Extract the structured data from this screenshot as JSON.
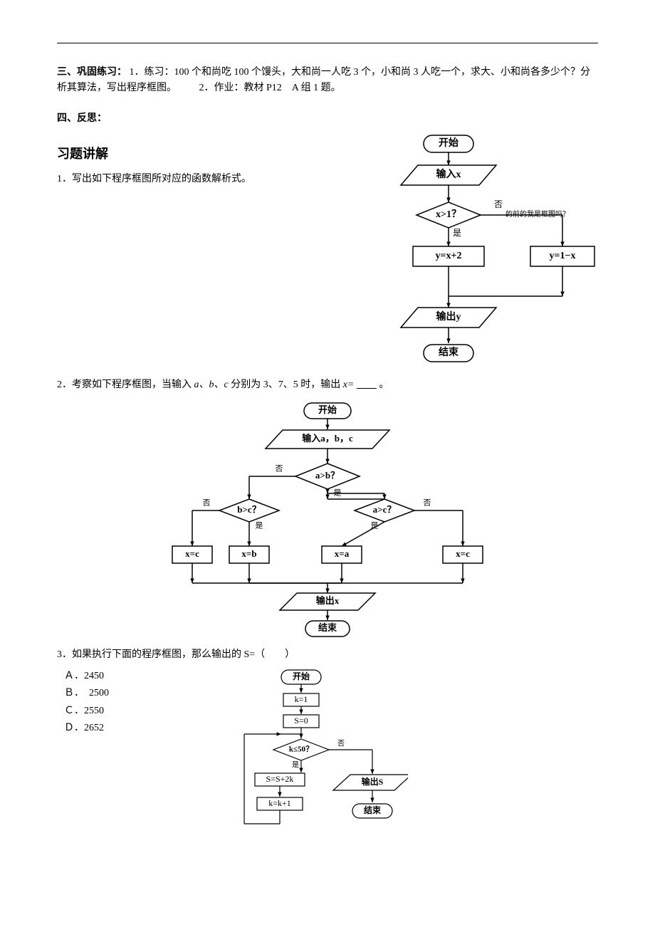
{
  "hr": "",
  "sec3": {
    "label": "三、巩固练习：",
    "body1": "1．练习：100 个和尚吃 100 个馒头，大和尚一人吃 3 个，小和尚 3 人吃一个，求大、小和尚各多少个？分析其算法，写出程序框图。",
    "body2": "　　2．作业：教材 P12　A 组 1 题。"
  },
  "sec4": {
    "label": "四、反思："
  },
  "ex_title": "习题讲解",
  "q1": {
    "text": "1．写出如下程序框图所对应的函数解析式。",
    "flow": {
      "start": "开始",
      "input": "输入x",
      "cond": "x>1？",
      "yes": "是",
      "no": "否",
      "branch_yes": "y=x+2",
      "branch_no": "y=1−x",
      "output": "输出y",
      "end": "结束",
      "note": "的前的我是框图吗？",
      "colors": {
        "stroke": "#000000",
        "fill": "#ffffff",
        "text": "#000000"
      },
      "lw": 1.5,
      "font_bold": true,
      "font_size": 14
    }
  },
  "q2": {
    "text_a": "2．考察如下程序框图，当输入 ",
    "abc": "a、b、c",
    "text_b": " 分别为 3、7、5 时，输出 ",
    "xvar": "x=",
    "blank": "　　",
    "tail": "。",
    "flow": {
      "start": "开始",
      "input": "输入a，b，c",
      "cond1": "a>b？",
      "cond2l": "b>c？",
      "cond2r": "a>c？",
      "yes": "是",
      "no": "否",
      "xa": "x=a",
      "xb": "x=b",
      "xc": "x=c",
      "output": "输出x",
      "end": "结束",
      "colors": {
        "stroke": "#000000",
        "fill": "#ffffff",
        "text": "#000000"
      },
      "lw": 1.5,
      "font_size": 13
    }
  },
  "q3": {
    "text": "3．如果执行下面的程序框图，那么输出的 S=（　　）",
    "opts": {
      "A": "Ａ．2450",
      "B": "Ｂ．　2500",
      "C": "Ｃ．2550",
      "D": "Ｄ．2652"
    },
    "flow": {
      "start": "开始",
      "k1": "k=1",
      "s0": "S=0",
      "cond": "k≤50？",
      "yes": "是",
      "no": "否",
      "ss": "S=S+2k",
      "kk": "k=k+1",
      "output": "输出S",
      "end": "结束",
      "colors": {
        "stroke": "#000000",
        "fill": "#ffffff",
        "text": "#000000"
      },
      "lw": 1.2,
      "font_size": 12
    }
  }
}
